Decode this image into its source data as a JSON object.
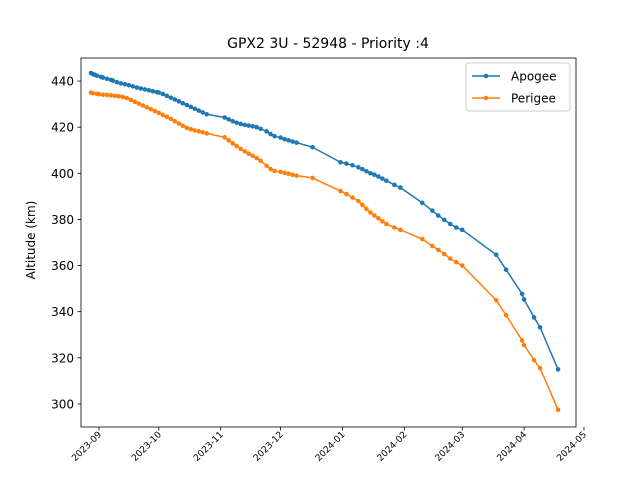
{
  "chart_data": {
    "type": "line",
    "title": "GPX2 3U - 52948 - Priority :4",
    "xlabel": "",
    "ylabel": "Altitude (km)",
    "ylim": [
      290,
      450
    ],
    "yticks": [
      300,
      320,
      340,
      360,
      380,
      400,
      420,
      440
    ],
    "xlim": [
      "2023-08-23",
      "2024-04-27"
    ],
    "xticks": [
      "2023-09",
      "2023-10",
      "2023-11",
      "2023-12",
      "2024-01",
      "2024-02",
      "2024-03",
      "2024-04",
      "2024-05"
    ],
    "xtick_dates": [
      "2023-09-01",
      "2023-10-01",
      "2023-11-01",
      "2023-12-01",
      "2024-01-01",
      "2024-02-01",
      "2024-03-01",
      "2024-04-01",
      "2024-05-01"
    ],
    "grid": false,
    "legend_position": "top-right",
    "series": [
      {
        "name": "Apogee",
        "color": "#1f77b4",
        "x": [
          "2023-08-28",
          "2023-08-29",
          "2023-08-30",
          "2023-08-31",
          "2023-09-02",
          "2023-09-03",
          "2023-09-05",
          "2023-09-07",
          "2023-09-08",
          "2023-09-10",
          "2023-09-12",
          "2023-09-14",
          "2023-09-16",
          "2023-09-18",
          "2023-09-20",
          "2023-09-22",
          "2023-09-24",
          "2023-09-26",
          "2023-09-28",
          "2023-09-30",
          "2023-10-01",
          "2023-10-03",
          "2023-10-05",
          "2023-10-07",
          "2023-10-09",
          "2023-10-11",
          "2023-10-13",
          "2023-10-15",
          "2023-10-17",
          "2023-10-19",
          "2023-10-21",
          "2023-10-23",
          "2023-10-25",
          "2023-11-03",
          "2023-11-05",
          "2023-11-07",
          "2023-11-09",
          "2023-11-11",
          "2023-11-13",
          "2023-11-15",
          "2023-11-17",
          "2023-11-19",
          "2023-11-21",
          "2023-11-24",
          "2023-11-26",
          "2023-11-28",
          "2023-12-01",
          "2023-12-03",
          "2023-12-05",
          "2023-12-07",
          "2023-12-09",
          "2023-12-17",
          "2023-12-31",
          "2024-01-03",
          "2024-01-06",
          "2024-01-09",
          "2024-01-11",
          "2024-01-13",
          "2024-01-15",
          "2024-01-17",
          "2024-01-19",
          "2024-01-21",
          "2024-01-23",
          "2024-01-27",
          "2024-01-30",
          "2024-02-10",
          "2024-02-15",
          "2024-02-18",
          "2024-02-21",
          "2024-02-24",
          "2024-02-27",
          "2024-03-01",
          "2024-03-18",
          "2024-03-23",
          "2024-03-31",
          "2024-04-01",
          "2024-04-06",
          "2024-04-09",
          "2024-04-18"
        ],
        "values": [
          443.5,
          443,
          442.7,
          442.3,
          441.8,
          441.5,
          441,
          440.5,
          440.2,
          439.5,
          439,
          438.6,
          438.2,
          437.7,
          437.2,
          436.8,
          436.4,
          436,
          435.6,
          435.2,
          435,
          434.4,
          433.6,
          432.8,
          432,
          431.2,
          430.4,
          429.6,
          428.8,
          428,
          427.2,
          426.4,
          425.6,
          424.2,
          423.4,
          422.6,
          421.9,
          421.4,
          421,
          420.7,
          420.4,
          420,
          419.3,
          418.2,
          417,
          416.1,
          415.5,
          414.8,
          414.3,
          413.8,
          413.3,
          411.3,
          404.8,
          404.2,
          403.5,
          402.6,
          401.8,
          400.9,
          400,
          399.4,
          398.6,
          397.7,
          396.8,
          395,
          393.8,
          387.2,
          383.8,
          381.7,
          379.8,
          378,
          376.5,
          375.5,
          364.7,
          358.2,
          347.7,
          345.3,
          337.5,
          333.2,
          315
        ]
      },
      {
        "name": "Perigee",
        "color": "#ff7f0e",
        "x": [
          "2023-08-28",
          "2023-08-29",
          "2023-08-31",
          "2023-09-01",
          "2023-09-03",
          "2023-09-05",
          "2023-09-07",
          "2023-09-09",
          "2023-09-11",
          "2023-09-13",
          "2023-09-15",
          "2023-09-17",
          "2023-09-19",
          "2023-09-21",
          "2023-09-23",
          "2023-09-25",
          "2023-09-27",
          "2023-09-29",
          "2023-10-01",
          "2023-10-03",
          "2023-10-05",
          "2023-10-07",
          "2023-10-09",
          "2023-10-11",
          "2023-10-13",
          "2023-10-15",
          "2023-10-17",
          "2023-10-19",
          "2023-10-21",
          "2023-10-23",
          "2023-10-25",
          "2023-11-03",
          "2023-11-05",
          "2023-11-07",
          "2023-11-09",
          "2023-11-11",
          "2023-11-13",
          "2023-11-15",
          "2023-11-17",
          "2023-11-19",
          "2023-11-21",
          "2023-11-24",
          "2023-11-26",
          "2023-11-28",
          "2023-12-01",
          "2023-12-03",
          "2023-12-05",
          "2023-12-07",
          "2023-12-09",
          "2023-12-17",
          "2023-12-31",
          "2024-01-03",
          "2024-01-06",
          "2024-01-09",
          "2024-01-11",
          "2024-01-13",
          "2024-01-15",
          "2024-01-17",
          "2024-01-19",
          "2024-01-21",
          "2024-01-23",
          "2024-01-27",
          "2024-01-30",
          "2024-02-10",
          "2024-02-15",
          "2024-02-18",
          "2024-02-21",
          "2024-02-24",
          "2024-02-27",
          "2024-03-01",
          "2024-03-18",
          "2024-03-23",
          "2024-03-31",
          "2024-04-01",
          "2024-04-06",
          "2024-04-09",
          "2024-04-18"
        ],
        "values": [
          435,
          434.7,
          434.5,
          434.3,
          434.1,
          434,
          433.8,
          433.6,
          433.4,
          433.1,
          432.6,
          431.8,
          431,
          430.2,
          429.4,
          428.6,
          427.8,
          427,
          426.2,
          425.3,
          424.5,
          423.6,
          422.6,
          421.6,
          420.6,
          419.7,
          419.1,
          418.6,
          418.2,
          417.8,
          417.3,
          415.6,
          414.3,
          413,
          411.8,
          410.6,
          409.5,
          408.5,
          407.6,
          406.6,
          405.4,
          403.2,
          401.8,
          401,
          400.6,
          400.2,
          399.8,
          399.4,
          399,
          398,
          392.3,
          391,
          389.5,
          388,
          386.3,
          384.6,
          383,
          381.7,
          380.5,
          379.2,
          378,
          376.5,
          375.5,
          371.5,
          368.5,
          366.8,
          365,
          363,
          361.5,
          360,
          345,
          338.5,
          327.5,
          325.5,
          319,
          315.5,
          297.5
        ]
      }
    ]
  }
}
